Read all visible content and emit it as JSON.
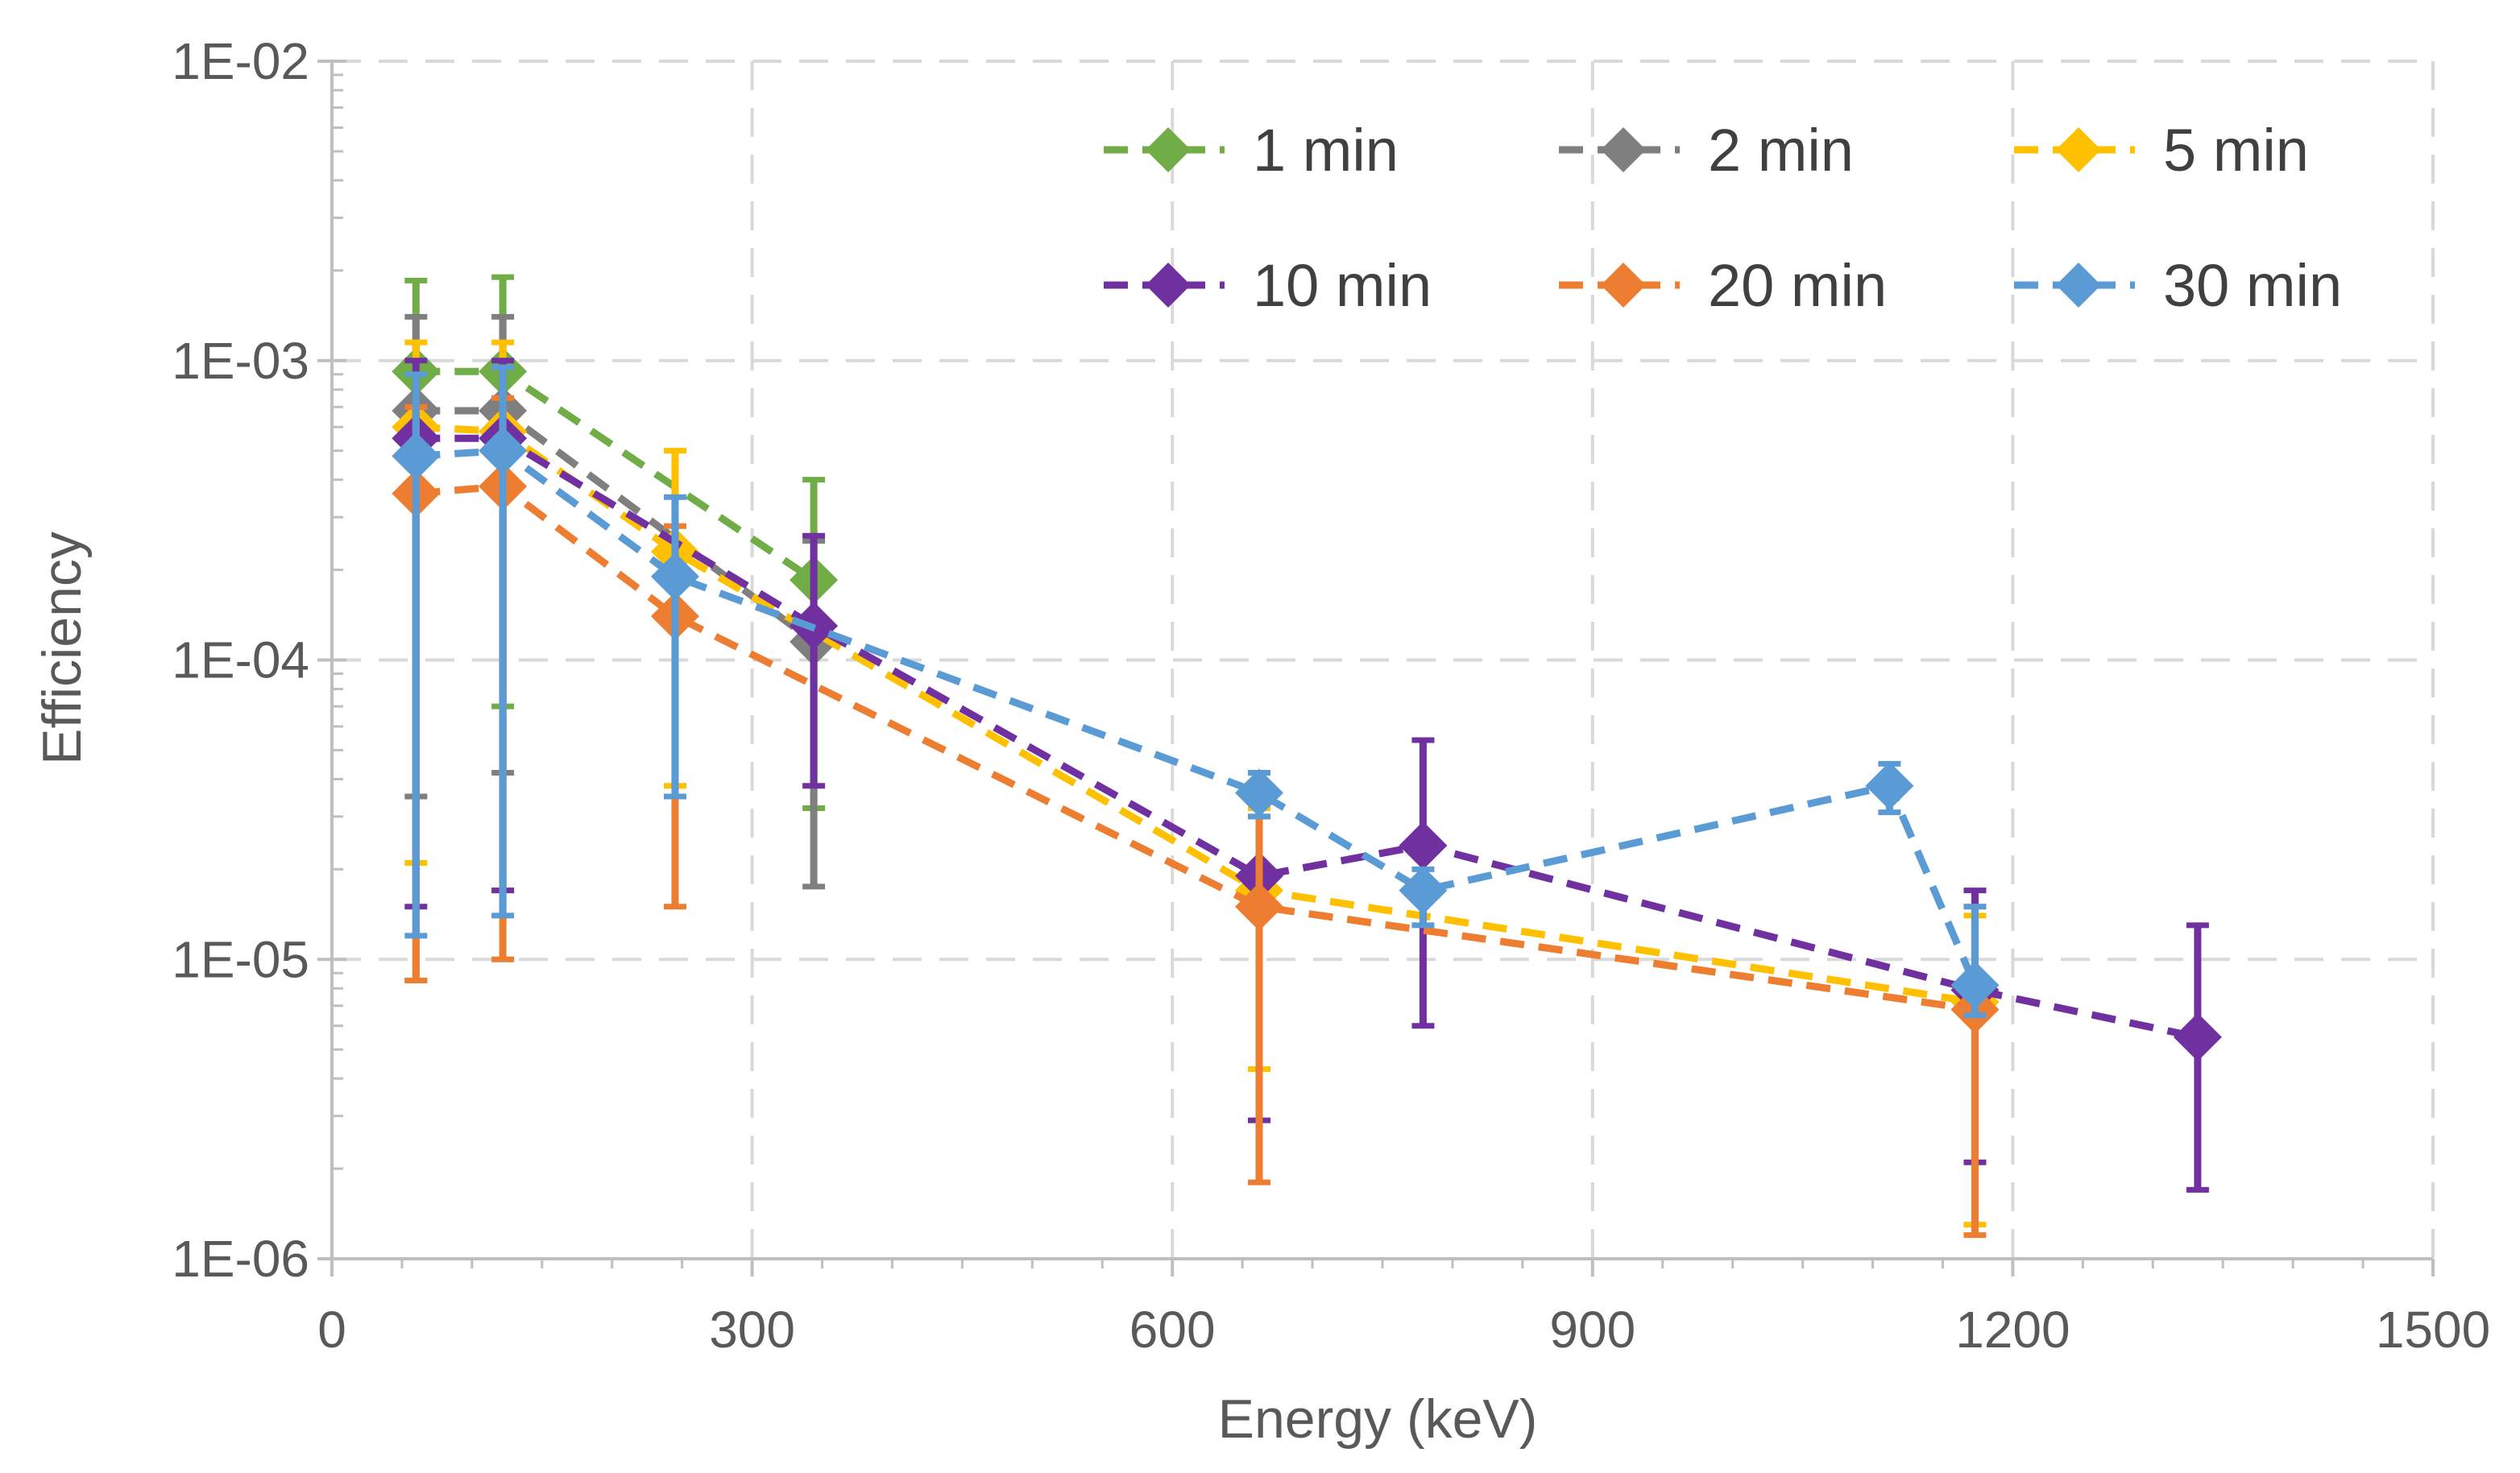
{
  "chart_data": {
    "type": "line",
    "title": "",
    "xlabel": "Energy (keV)",
    "ylabel": "Efficiency",
    "xlim": [
      0,
      1500
    ],
    "ylim": [
      1e-06,
      0.01
    ],
    "yscale": "log",
    "grid": true,
    "legend_position": "top-right",
    "x_ticks": [
      0,
      300,
      600,
      900,
      1200,
      1500
    ],
    "x_tick_labels": [
      "0",
      "300",
      "600",
      "900",
      "1200",
      "1500"
    ],
    "y_ticks": [
      1e-06,
      1e-05,
      0.0001,
      0.001,
      0.01
    ],
    "y_tick_labels": [
      "1E-06",
      "1E-05",
      "1E-04",
      "1E-03",
      "1E-02"
    ],
    "series": [
      {
        "name": "1 min",
        "color": "#70AD47",
        "x": [
          60,
          122,
          344
        ],
        "y": [
          0.00092,
          0.00092,
          0.000185
        ],
        "err_high": [
          0.00185,
          0.0019,
          0.0004
        ],
        "err_low": [
          8.5e-06,
          7e-05,
          3.2e-05
        ]
      },
      {
        "name": "2 min",
        "color": "#7F7F7F",
        "x": [
          60,
          122,
          344
        ],
        "y": [
          0.00068,
          0.00068,
          0.000115
        ],
        "err_high": [
          0.0014,
          0.0014,
          0.00025
        ],
        "err_low": [
          3.5e-05,
          4.2e-05,
          1.75e-05
        ]
      },
      {
        "name": "5 min",
        "color": "#FFC000",
        "x": [
          60,
          122,
          245,
          662,
          1173
        ],
        "y": [
          0.0006,
          0.00058,
          0.00023,
          1.7e-05,
          7.2e-06
        ],
        "err_high": [
          0.00115,
          0.00115,
          0.0005,
          3.2e-05,
          1.4e-05
        ],
        "err_low": [
          2.1e-05,
          1.7e-05,
          3.8e-05,
          4.3e-06,
          1.3e-06
        ]
      },
      {
        "name": "10 min",
        "color": "#7030A0",
        "x": [
          60,
          122,
          344,
          662,
          779,
          1173,
          1332
        ],
        "y": [
          0.00055,
          0.00055,
          0.00013,
          1.9e-05,
          2.4e-05,
          7.9e-06,
          5.5e-06
        ],
        "err_high": [
          0.001,
          0.001,
          0.00026,
          3.5e-05,
          5.4e-05,
          1.7e-05,
          1.3e-05
        ],
        "err_low": [
          1.5e-05,
          1.7e-05,
          3.8e-05,
          2.9e-06,
          6e-06,
          2.1e-06,
          1.7e-06
        ]
      },
      {
        "name": "20 min",
        "color": "#ED7D31",
        "x": [
          60,
          122,
          245,
          662,
          1173
        ],
        "y": [
          0.00036,
          0.00038,
          0.00014,
          1.5e-05,
          6.8e-06
        ],
        "err_high": [
          0.0007,
          0.00075,
          0.00028,
          3e-05,
          1.5e-05
        ],
        "err_low": [
          8.5e-06,
          1e-05,
          1.5e-05,
          1.8e-06,
          1.2e-06
        ]
      },
      {
        "name": "30 min",
        "color": "#5B9BD5",
        "x": [
          60,
          122,
          245,
          662,
          779,
          1112,
          1173
        ],
        "y": [
          0.00048,
          0.0005,
          0.00019,
          3.6e-05,
          1.7e-05,
          3.8e-05,
          8.2e-06
        ],
        "err_high": [
          0.0009,
          0.00095,
          0.00035,
          4.2e-05,
          2e-05,
          4.5e-05,
          1.5e-05
        ],
        "err_low": [
          1.2e-05,
          1.4e-05,
          3.5e-05,
          3e-05,
          1.3e-05,
          3.1e-05,
          6.5e-06
        ]
      }
    ]
  }
}
